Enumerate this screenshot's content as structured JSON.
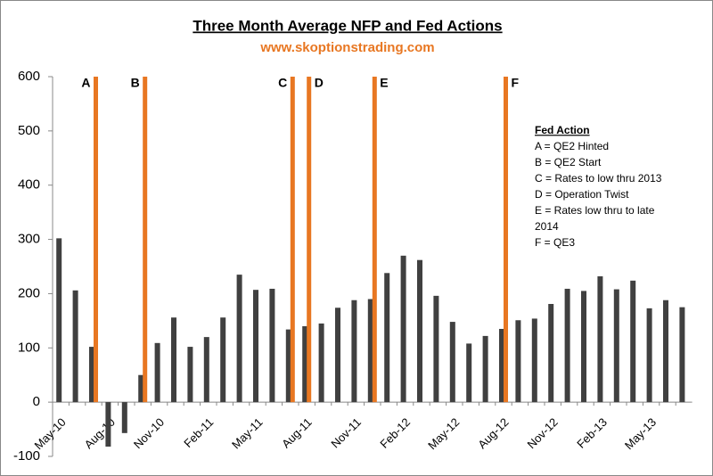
{
  "chart_data": {
    "type": "bar",
    "title": "Three Month Average NFP and Fed Actions",
    "subtitle": "www.skoptionstrading.com",
    "categories": [
      "May-10",
      null,
      null,
      "Aug-10",
      null,
      null,
      "Nov-10",
      null,
      null,
      "Feb-11",
      null,
      null,
      "May-11",
      null,
      null,
      "Aug-11",
      null,
      null,
      "Nov-11",
      null,
      null,
      "Feb-12",
      null,
      null,
      "May-12",
      null,
      null,
      "Aug-12",
      null,
      null,
      "Nov-12",
      null,
      null,
      "Feb-13",
      null,
      null,
      "May-13",
      null,
      null
    ],
    "series": [
      {
        "color": "#404040",
        "values": [
          302,
          206,
          102,
          -82,
          -57,
          50,
          109,
          156,
          102,
          120,
          156,
          235,
          207,
          209,
          134,
          140,
          145,
          174,
          188,
          190,
          238,
          270,
          262,
          196,
          148,
          108,
          122,
          135,
          151,
          154,
          181,
          209,
          205,
          232,
          208,
          224,
          173,
          188,
          175
        ]
      },
      {
        "color": "#e87722",
        "values": [
          null,
          null,
          600,
          null,
          null,
          600,
          null,
          null,
          null,
          null,
          null,
          null,
          null,
          null,
          600,
          600,
          null,
          null,
          null,
          600,
          null,
          null,
          null,
          null,
          null,
          null,
          null,
          600,
          null,
          null,
          null,
          null,
          null,
          null,
          null,
          null,
          null,
          null,
          null
        ],
        "value_labels": [
          null,
          null,
          "A",
          null,
          null,
          "B",
          null,
          null,
          null,
          null,
          null,
          null,
          null,
          null,
          "C",
          "D",
          null,
          null,
          null,
          "E",
          null,
          null,
          null,
          null,
          null,
          null,
          null,
          "F",
          null,
          null,
          null,
          null,
          null,
          null,
          null,
          null,
          null,
          null,
          null
        ]
      }
    ],
    "ylim": [
      -100,
      600
    ],
    "yticks": [
      -100,
      0,
      100,
      200,
      300,
      400,
      500,
      600
    ],
    "grid": false,
    "note_title": "Fed Action",
    "note_lines": [
      "A = QE2 Hinted",
      "B = QE2 Start",
      "C = Rates to low thru 2013",
      "D = Operation Twist",
      "E = Rates low thru to late",
      "2014",
      "F  = QE3"
    ]
  }
}
